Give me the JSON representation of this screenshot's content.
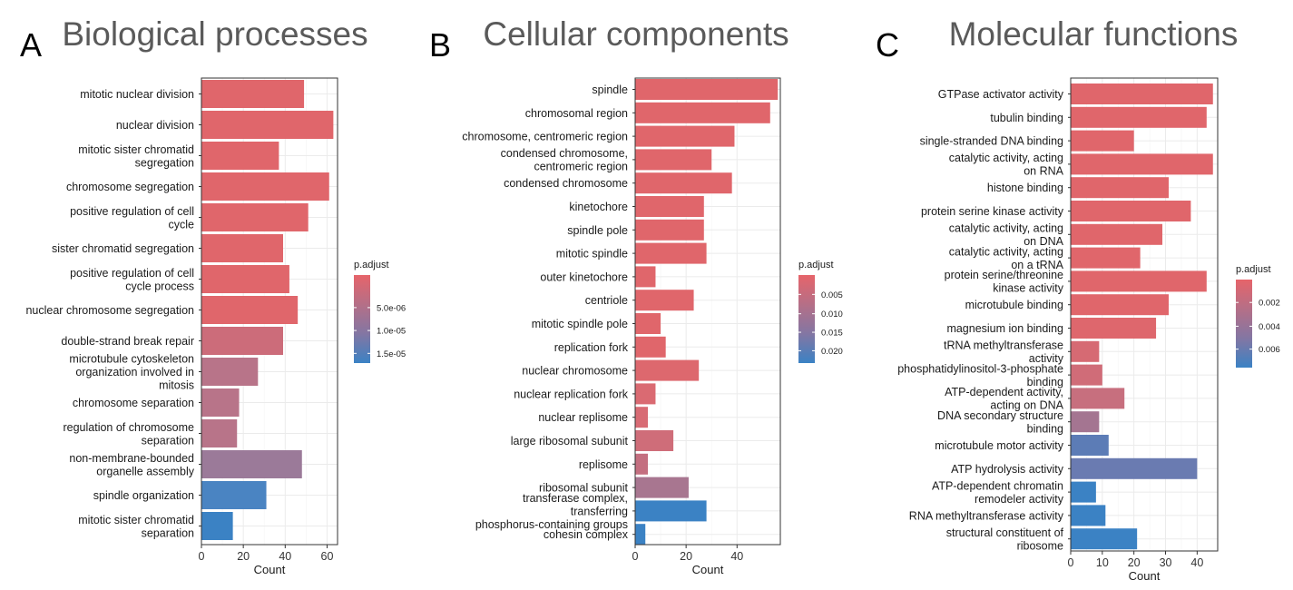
{
  "chart_data": [
    {
      "type": "bar",
      "orientation": "horizontal",
      "panel_letter": "A",
      "title": "Biological processes",
      "xlabel": "Count",
      "ylabel": "",
      "xlim": [
        0,
        65
      ],
      "xticks": [
        0,
        20,
        40,
        60
      ],
      "xtick_labels": [
        "0",
        "20",
        "40",
        "60"
      ],
      "grid": true,
      "legend": {
        "title": "p.adjust",
        "placement": "right",
        "tick_labels": [
          "5.0e-06",
          "1.0e-05",
          "1.5e-05"
        ],
        "tick_fractions": [
          0.37,
          0.63,
          0.89
        ]
      },
      "categories": [
        [
          "mitotic nuclear division"
        ],
        [
          "nuclear division"
        ],
        [
          "mitotic sister chromatid",
          "segregation"
        ],
        [
          "chromosome segregation"
        ],
        [
          "positive regulation of cell",
          "cycle"
        ],
        [
          "sister chromatid segregation"
        ],
        [
          "positive regulation of cell",
          "cycle process"
        ],
        [
          "nuclear chromosome segregation"
        ],
        [
          "double-strand break repair"
        ],
        [
          "microtubule cytoskeleton",
          "organization involved in",
          "mitosis"
        ],
        [
          "chromosome separation"
        ],
        [
          "regulation of chromosome",
          "separation"
        ],
        [
          "non-membrane-bounded",
          "organelle assembly"
        ],
        [
          "spindle organization"
        ],
        [
          "mitotic sister chromatid",
          "separation"
        ]
      ],
      "values": [
        49,
        63,
        37,
        61,
        51,
        39,
        42,
        46,
        39,
        27,
        18,
        17,
        48,
        31,
        15
      ],
      "colors": [
        "#e0666b",
        "#e0666b",
        "#e0666b",
        "#e0666b",
        "#e0666b",
        "#e0666b",
        "#e0666b",
        "#e0666b",
        "#cc6c7a",
        "#b87489",
        "#b87489",
        "#b87489",
        "#9b7a99",
        "#4a84c2",
        "#3b82c4"
      ]
    },
    {
      "type": "bar",
      "orientation": "horizontal",
      "panel_letter": "B",
      "title": "Cellular components",
      "xlabel": "Count",
      "ylabel": "",
      "xlim": [
        0,
        57
      ],
      "xticks": [
        0,
        20,
        40
      ],
      "xtick_labels": [
        "0",
        "20",
        "40"
      ],
      "grid": true,
      "legend": {
        "title": "p.adjust",
        "placement": "right",
        "tick_labels": [
          "0.005",
          "0.010",
          "0.015",
          "0.020"
        ],
        "tick_fractions": [
          0.22,
          0.44,
          0.65,
          0.86
        ]
      },
      "categories": [
        [
          "spindle"
        ],
        [
          "chromosomal region"
        ],
        [
          "chromosome, centromeric region"
        ],
        [
          "condensed chromosome,",
          "centromeric region"
        ],
        [
          "condensed chromosome"
        ],
        [
          "kinetochore"
        ],
        [
          "spindle pole"
        ],
        [
          "mitotic spindle"
        ],
        [
          "outer kinetochore"
        ],
        [
          "centriole"
        ],
        [
          "mitotic spindle pole"
        ],
        [
          "replication fork"
        ],
        [
          "nuclear chromosome"
        ],
        [
          "nuclear replication fork"
        ],
        [
          "nuclear replisome"
        ],
        [
          "large ribosomal subunit"
        ],
        [
          "replisome"
        ],
        [
          "ribosomal subunit"
        ],
        [
          "transferase complex,",
          "transferring",
          "phosphorus-containing groups"
        ],
        [
          "cohesin complex"
        ]
      ],
      "values": [
        56,
        53,
        39,
        30,
        38,
        27,
        27,
        28,
        8,
        23,
        10,
        12,
        25,
        8,
        5,
        15,
        5,
        21,
        28,
        4
      ],
      "colors": [
        "#e0666b",
        "#e0666b",
        "#e0666b",
        "#e0666b",
        "#e0666b",
        "#e0666b",
        "#e0666b",
        "#e0666b",
        "#e0666b",
        "#e0666b",
        "#e0666b",
        "#e0666b",
        "#dd686e",
        "#da6a72",
        "#d86b74",
        "#cf6d79",
        "#c46f80",
        "#a87690",
        "#3b82c4",
        "#3b82c4"
      ]
    },
    {
      "type": "bar",
      "orientation": "horizontal",
      "panel_letter": "C",
      "title": "Molecular functions",
      "xlabel": "Count",
      "ylabel": "",
      "xlim": [
        0,
        46.5
      ],
      "xticks": [
        0,
        10,
        20,
        30,
        40
      ],
      "xtick_labels": [
        "0",
        "10",
        "20",
        "30",
        "40"
      ],
      "grid": true,
      "legend": {
        "title": "p.adjust",
        "placement": "right",
        "tick_labels": [
          "0.002",
          "0.004",
          "0.006"
        ],
        "tick_fractions": [
          0.26,
          0.53,
          0.79
        ]
      },
      "categories": [
        [
          "GTPase activator activity"
        ],
        [
          "tubulin binding"
        ],
        [
          "single-stranded DNA binding"
        ],
        [
          "catalytic activity, acting",
          "on RNA"
        ],
        [
          "histone binding"
        ],
        [
          "protein serine kinase activity"
        ],
        [
          "catalytic activity, acting",
          "on DNA"
        ],
        [
          "catalytic activity, acting",
          "on a tRNA"
        ],
        [
          "protein serine/threonine",
          "kinase activity"
        ],
        [
          "microtubule binding"
        ],
        [
          "magnesium ion binding"
        ],
        [
          "tRNA methyltransferase",
          "activity"
        ],
        [
          "phosphatidylinositol-3-phosphate",
          "binding"
        ],
        [
          "ATP-dependent activity,",
          "acting on DNA"
        ],
        [
          "DNA secondary structure",
          "binding"
        ],
        [
          "microtubule motor activity"
        ],
        [
          "ATP hydrolysis activity"
        ],
        [
          "ATP-dependent chromatin",
          "remodeler activity"
        ],
        [
          "RNA methyltransferase activity"
        ],
        [
          "structural constituent of",
          "ribosome"
        ]
      ],
      "values": [
        45,
        43,
        20,
        45,
        31,
        38,
        29,
        22,
        43,
        31,
        27,
        9,
        10,
        17,
        9,
        12,
        40,
        8,
        11,
        21
      ],
      "colors": [
        "#e0666b",
        "#e0666b",
        "#e0666b",
        "#e0666b",
        "#e0666b",
        "#e0666b",
        "#e0666b",
        "#e0666b",
        "#e0666b",
        "#e0666b",
        "#de676d",
        "#d66a73",
        "#d06c78",
        "#c76f7e",
        "#a47591",
        "#5c7cb6",
        "#6a7bb1",
        "#3b82c4",
        "#3b82c4",
        "#3b82c4"
      ]
    }
  ]
}
